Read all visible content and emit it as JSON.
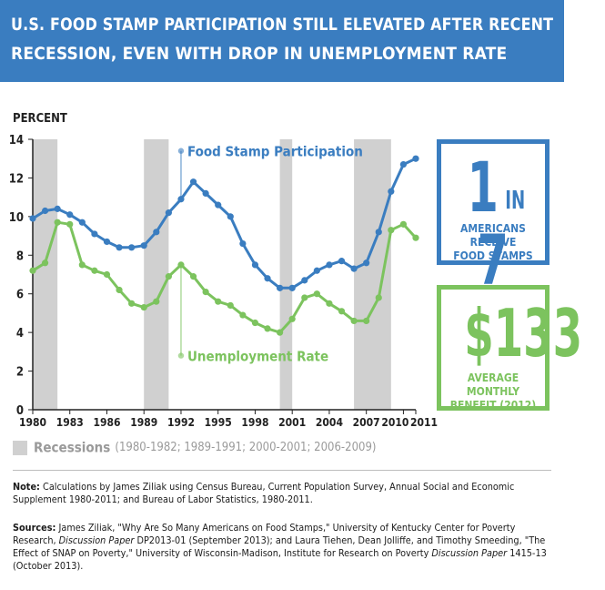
{
  "header": {
    "title_line1": "U.S. FOOD STAMP PARTICIPATION STILL ELEVATED AFTER RECENT",
    "title_line2": "RECESSION, EVEN WITH DROP IN UNEMPLOYMENT RATE"
  },
  "chart_data": {
    "type": "line",
    "ylabel": "PERCENT",
    "ylim": [
      0,
      14
    ],
    "yticks": [
      "0",
      "2",
      "4",
      "6",
      "8",
      "10",
      "12",
      "14"
    ],
    "xlim": [
      1980,
      2011
    ],
    "xticks": [
      "1980",
      "1983",
      "1986",
      "1989",
      "1992",
      "1995",
      "1998",
      "2001",
      "2004",
      "2007",
      "2010",
      "2011"
    ],
    "x": [
      1980,
      1981,
      1982,
      1983,
      1984,
      1985,
      1986,
      1987,
      1988,
      1989,
      1990,
      1991,
      1992,
      1993,
      1994,
      1995,
      1996,
      1997,
      1998,
      1999,
      2000,
      2001,
      2002,
      2003,
      2004,
      2005,
      2006,
      2007,
      2008,
      2009,
      2010,
      2011
    ],
    "series": [
      {
        "name": "Food Stamp Participation",
        "color": "#3a7dc0",
        "values": [
          9.9,
          10.3,
          10.4,
          10.1,
          9.7,
          9.1,
          8.7,
          8.4,
          8.4,
          8.5,
          9.2,
          10.2,
          10.9,
          11.8,
          11.2,
          10.6,
          10.0,
          8.6,
          7.5,
          6.8,
          6.3,
          6.3,
          6.7,
          7.2,
          7.5,
          7.7,
          7.3,
          7.6,
          9.2,
          11.3,
          12.7,
          13.0
        ]
      },
      {
        "name": "Unemployment Rate",
        "color": "#7cc35e",
        "values": [
          7.2,
          7.6,
          9.7,
          9.6,
          7.5,
          7.2,
          7.0,
          6.2,
          5.5,
          5.3,
          5.6,
          6.9,
          7.5,
          6.9,
          6.1,
          5.6,
          5.4,
          4.9,
          4.5,
          4.2,
          4.0,
          4.7,
          5.8,
          6.0,
          5.5,
          5.1,
          4.6,
          4.6,
          5.8,
          9.3,
          9.6,
          8.9
        ]
      }
    ],
    "recessions": [
      [
        1980,
        1982
      ],
      [
        1989,
        1991
      ],
      [
        2000,
        2001
      ],
      [
        2006,
        2009
      ]
    ],
    "recession_color": "#d0d0d0",
    "grid": false
  },
  "stats": {
    "stat1_big_a": "1",
    "stat1_big_b": "IN",
    "stat1_big_c": "7",
    "stat1_caption_line1": "AMERICANS RECEIVE",
    "stat1_caption_line2": "FOOD STAMPS",
    "stat2_big": "$133",
    "stat2_caption_line1": "AVERAGE MONTHLY",
    "stat2_caption_line2": "BENEFIT (2012)"
  },
  "legend": {
    "label": "Recessions",
    "note": "(1980-1982; 1989-1991; 2000-2001; 2006-2009)"
  },
  "footnotes": {
    "note_label": "Note:",
    "note_text": "Calculations by James Ziliak using Census Bureau, Current Population Survey, Annual Social and Economic Supplement 1980-2011; and Bureau of Labor Statistics, 1980-2011.",
    "sources_label": "Sources:",
    "sources_1": "James Ziliak, \"Why Are So Many Americans on Food Stamps,\" University of Kentucky Center for Poverty Research,",
    "sources_2": "Discussion Paper",
    "sources_3": "DP2013-01 (September 2013); and Laura Tiehen, Dean Jolliffe, and Timothy Smeeding, \"The Effect of SNAP on Poverty,\" University of Wisconsin-Madison, Institute for Research on Poverty",
    "sources_4": "Discussion Paper",
    "sources_5": "1415-13 (October 2013)."
  }
}
